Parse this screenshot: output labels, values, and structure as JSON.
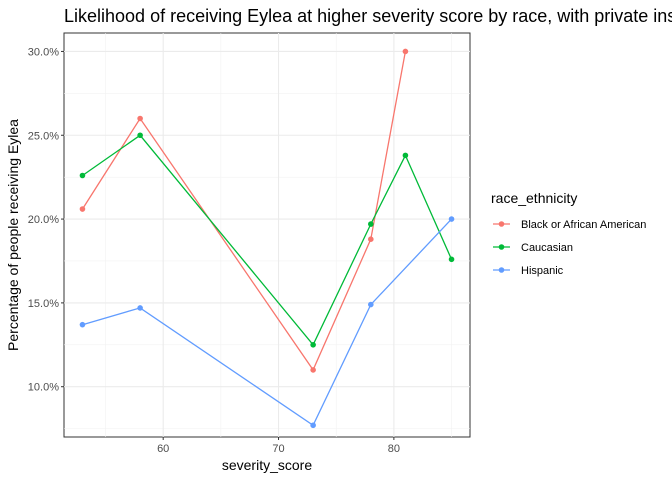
{
  "chart_data": {
    "type": "line",
    "title": "Likelihood of receiving Eylea at higher severity score by race, with private insurance",
    "xlabel": "severity_score",
    "ylabel": "Percentage of people receiving Eylea",
    "xlim": [
      51.4,
      86.6
    ],
    "ylim": [
      7.0,
      31.1
    ],
    "x_ticks": [
      60,
      70,
      80
    ],
    "x_tick_labels": [
      "60",
      "70",
      "80"
    ],
    "y_ticks": [
      10,
      15,
      20,
      25,
      30
    ],
    "y_tick_labels": [
      "10.0%",
      "15.0%",
      "20.0%",
      "25.0%",
      "30.0%"
    ],
    "grid": true,
    "legend": {
      "title": "race_ethnicity",
      "position": "right"
    },
    "series": [
      {
        "name": "Black or African American",
        "color": "#F8766D",
        "x": [
          53,
          58,
          73,
          78,
          81
        ],
        "y": [
          20.6,
          26.0,
          11.0,
          18.8,
          30.0
        ]
      },
      {
        "name": "Caucasian",
        "color": "#00BA38",
        "x": [
          53,
          58,
          73,
          78,
          81,
          85
        ],
        "y": [
          22.6,
          25.0,
          12.5,
          19.7,
          23.8,
          17.6
        ]
      },
      {
        "name": "Hispanic",
        "color": "#619CFF",
        "x": [
          53,
          58,
          73,
          78,
          85
        ],
        "y": [
          13.7,
          14.7,
          7.7,
          14.9,
          20.0
        ]
      }
    ]
  }
}
